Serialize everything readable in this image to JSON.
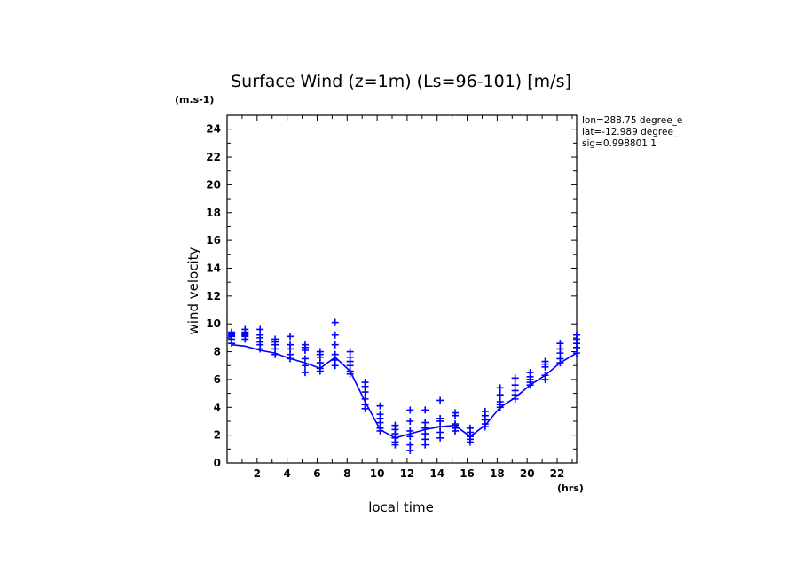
{
  "chart_data": {
    "type": "scatter",
    "title": "Surface Wind (z=1m) (Ls=96-101) [m/s]",
    "y_unit": "(m.s-1)",
    "x_unit": "(hrs)",
    "xlabel": "local time",
    "ylabel": "wind velocity",
    "xlim": [
      0,
      23.3
    ],
    "ylim": [
      0,
      25
    ],
    "x_ticks": [
      2,
      4,
      6,
      8,
      10,
      12,
      14,
      16,
      18,
      20,
      22
    ],
    "y_ticks": [
      0,
      2,
      4,
      6,
      8,
      10,
      12,
      14,
      16,
      18,
      20,
      22,
      24
    ],
    "info": [
      "lon=288.75 degree_e",
      "lat=-12.989 degree_",
      "sig=0.998801 1"
    ],
    "series": [
      {
        "name": "line",
        "x": [
          0.3,
          1.2,
          2.2,
          3.2,
          4.2,
          5.2,
          6.2,
          7.2,
          8.2,
          9.2,
          10.2,
          11.2,
          12.2,
          13.2,
          14.2,
          15.2,
          16.2,
          17.2,
          18.2,
          19.2,
          20.2,
          21.2,
          22.2,
          23.3
        ],
        "y": [
          8.5,
          8.4,
          8.1,
          7.9,
          7.5,
          7.2,
          6.8,
          7.6,
          6.6,
          4.4,
          2.4,
          1.8,
          2.1,
          2.4,
          2.6,
          2.7,
          1.9,
          2.7,
          4.0,
          4.7,
          5.6,
          6.3,
          7.2,
          7.9
        ]
      },
      {
        "name": "points",
        "groups": [
          {
            "x": 0.3,
            "y": [
              9.4,
              9.3,
              9.2,
              9.1,
              8.9,
              8.6
            ]
          },
          {
            "x": 1.2,
            "y": [
              9.6,
              9.4,
              9.3,
              9.2,
              9.1,
              8.9
            ]
          },
          {
            "x": 2.2,
            "y": [
              9.6,
              9.2,
              9.0,
              8.7,
              8.5,
              8.2
            ]
          },
          {
            "x": 3.2,
            "y": [
              8.9,
              8.7,
              8.5,
              8.2,
              7.8
            ]
          },
          {
            "x": 4.2,
            "y": [
              9.1,
              8.5,
              8.2,
              7.8,
              7.5
            ]
          },
          {
            "x": 5.2,
            "y": [
              8.5,
              8.3,
              8.1,
              7.5,
              7.0,
              6.5
            ]
          },
          {
            "x": 6.2,
            "y": [
              8.0,
              7.8,
              7.6,
              7.2,
              6.8,
              6.6
            ]
          },
          {
            "x": 7.2,
            "y": [
              10.1,
              9.2,
              8.5,
              7.8,
              7.4,
              7.0
            ]
          },
          {
            "x": 8.2,
            "y": [
              8.0,
              7.6,
              7.3,
              7.0,
              6.6,
              6.4
            ]
          },
          {
            "x": 9.2,
            "y": [
              5.8,
              5.5,
              5.1,
              4.6,
              4.2,
              3.9
            ]
          },
          {
            "x": 10.2,
            "y": [
              4.1,
              3.5,
              3.2,
              2.9,
              2.5,
              2.3
            ]
          },
          {
            "x": 11.2,
            "y": [
              2.7,
              2.4,
              2.1,
              1.8,
              1.5,
              1.3
            ]
          },
          {
            "x": 12.2,
            "y": [
              3.8,
              3.0,
              2.3,
              1.9,
              1.3,
              0.9
            ]
          },
          {
            "x": 13.2,
            "y": [
              3.8,
              2.9,
              2.5,
              2.1,
              1.7,
              1.3
            ]
          },
          {
            "x": 14.2,
            "y": [
              4.5,
              3.2,
              3.0,
              2.6,
              2.2,
              1.8
            ]
          },
          {
            "x": 15.2,
            "y": [
              3.6,
              3.4,
              2.8,
              2.7,
              2.5,
              2.3
            ]
          },
          {
            "x": 16.2,
            "y": [
              2.5,
              2.2,
              2.0,
              1.9,
              1.7,
              1.5
            ]
          },
          {
            "x": 17.2,
            "y": [
              3.7,
              3.4,
              3.1,
              2.8,
              2.6
            ]
          },
          {
            "x": 18.2,
            "y": [
              5.4,
              4.9,
              4.4,
              4.2,
              4.0
            ]
          },
          {
            "x": 19.2,
            "y": [
              6.1,
              5.6,
              5.2,
              4.9,
              4.6
            ]
          },
          {
            "x": 20.2,
            "y": [
              6.5,
              6.2,
              6.0,
              5.8,
              5.6
            ]
          },
          {
            "x": 21.2,
            "y": [
              7.3,
              7.1,
              6.9,
              6.3,
              6.0
            ]
          },
          {
            "x": 22.2,
            "y": [
              8.6,
              8.2,
              7.9,
              7.5,
              7.2
            ]
          },
          {
            "x": 23.3,
            "y": [
              9.2,
              8.9,
              8.6,
              8.3,
              7.9
            ]
          }
        ]
      }
    ],
    "colors": {
      "series": "#0000ff",
      "axis": "#000000"
    }
  }
}
